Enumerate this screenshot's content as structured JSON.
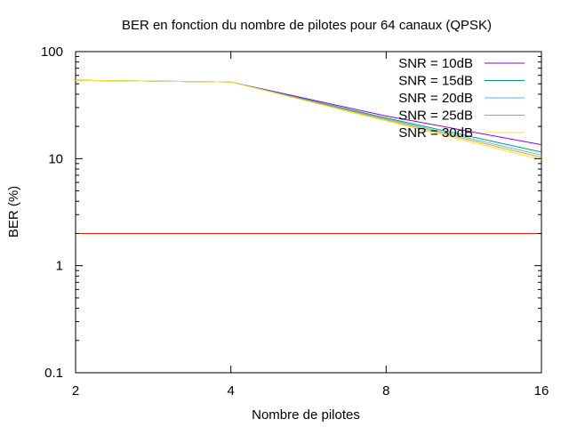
{
  "chart_data": {
    "type": "line",
    "title": "BER en fonction du nombre de pilotes pour 64 canaux (QPSK)",
    "xlabel": "Nombre de pilotes",
    "ylabel": "BER (%)",
    "xscale": "log2",
    "yscale": "log10",
    "xlim": [
      2,
      16
    ],
    "ylim": [
      0.1,
      100
    ],
    "x_ticks": [
      "2",
      "4",
      "8",
      "16"
    ],
    "y_ticks": [
      "0.1",
      "1",
      "10",
      "100"
    ],
    "grid": false,
    "legend_position": "top-right",
    "x": [
      2,
      4,
      8,
      16
    ],
    "series": [
      {
        "name": "SNR = 10dB",
        "color": "#9400d3",
        "values": [
          54,
          52,
          25,
          13.5
        ]
      },
      {
        "name": "SNR = 15dB",
        "color": "#009e73",
        "values": [
          54,
          52,
          24,
          11.5
        ]
      },
      {
        "name": "SNR = 20dB",
        "color": "#56b4e9",
        "values": [
          54,
          52,
          23.5,
          10.8
        ]
      },
      {
        "name": "SNR = 25dB",
        "color": "#e69f00",
        "values": [
          54,
          52,
          23,
          10.3
        ]
      },
      {
        "name": "SNR = 30dB",
        "color": "#f0e442",
        "values": [
          54,
          52,
          22.5,
          9.8
        ]
      }
    ],
    "reference_line": {
      "color": "#e51e10",
      "value": 2
    }
  }
}
